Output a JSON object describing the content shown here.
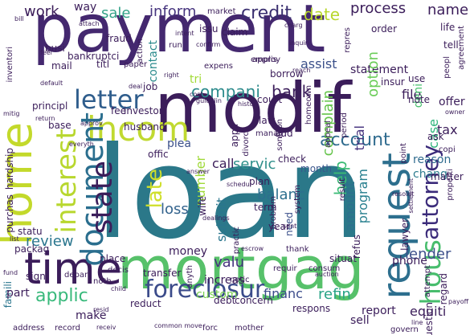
{
  "words": [
    {
      "text": "payment",
      "color": "#44286f"
    },
    {
      "text": "modif",
      "color": "#3b1d5a"
    },
    {
      "text": "loan",
      "color": "#2b7889"
    },
    {
      "text": "mortgag",
      "color": "#57c16a"
    },
    {
      "text": "home",
      "color": "#c3d92b"
    },
    {
      "text": "time",
      "color": "#3b1d5a"
    },
    {
      "text": "request",
      "color": "#2d6f8e"
    },
    {
      "text": "incom",
      "color": "#c0d930"
    },
    {
      "text": "document",
      "color": "#2a6e8e"
    },
    {
      "text": "letter",
      "color": "#2f5d8c"
    },
    {
      "text": "interest",
      "color": "#b8d72e"
    },
    {
      "text": "state",
      "color": "#3b1d5a"
    },
    {
      "text": "foreclosur",
      "color": "#3b4b8a"
    },
    {
      "text": "attorney",
      "color": "#3b2b7a"
    },
    {
      "text": "hous",
      "color": "#48bd6d"
    },
    {
      "text": "late",
      "color": "#cfdf2a"
    },
    {
      "text": "applic",
      "color": "#38b97b"
    },
    {
      "text": "credit",
      "color": "#3a2f70"
    },
    {
      "text": "compani",
      "color": "#2d8b8c"
    },
    {
      "text": "account",
      "color": "#2f6b8e"
    },
    {
      "text": "work",
      "color": "#3b1d5a"
    },
    {
      "text": "inform",
      "color": "#46347e"
    },
    {
      "text": "sale",
      "color": "#34a388"
    },
    {
      "text": "date",
      "color": "#b8d72e"
    },
    {
      "text": "process",
      "color": "#3b1d5a"
    },
    {
      "text": "name",
      "color": "#3b1d5a"
    },
    {
      "text": "bank",
      "color": "#3b1d5a"
    },
    {
      "text": "servic",
      "color": "#2f8f8b"
    },
    {
      "text": "review",
      "color": "#2a768e"
    },
    {
      "text": "valu",
      "color": "#46337e"
    },
    {
      "text": "financ",
      "color": "#3b4b8a"
    },
    {
      "text": "refin",
      "color": "#27a386"
    },
    {
      "text": "loss",
      "color": "#33638d"
    },
    {
      "text": "balanc",
      "color": "#2d6f8e"
    },
    {
      "text": "call",
      "color": "#3b1d5a"
    },
    {
      "text": "help",
      "color": "#3bbb75"
    },
    {
      "text": "amount",
      "color": "#2d6f8e"
    },
    {
      "text": "program",
      "color": "#277f8e"
    },
    {
      "text": "complain",
      "color": "#64c44a"
    },
    {
      "text": "trial",
      "color": "#46337e"
    },
    {
      "text": "statement",
      "color": "#3b1d5a"
    },
    {
      "text": "option",
      "color": "#6ccd5a"
    },
    {
      "text": "file",
      "color": "#3b1d5a"
    },
    {
      "text": "lender",
      "color": "#3c4f8a"
    },
    {
      "text": "tax",
      "color": "#3b1d5a"
    },
    {
      "text": "case",
      "color": "#2fb47c"
    },
    {
      "text": "deni",
      "color": "#48c16e"
    },
    {
      "text": "assist",
      "color": "#3b508a"
    },
    {
      "text": "contact",
      "color": "#2a8a8c"
    },
    {
      "text": "tri",
      "color": "#a2da37"
    },
    {
      "text": "submit",
      "color": "#2a768e"
    },
    {
      "text": "plea",
      "color": "#3b508a"
    },
    {
      "text": "number",
      "color": "#9fd938"
    },
    {
      "text": "phone",
      "color": "#3b1d5a"
    },
    {
      "text": "offer",
      "color": "#3b1d5a"
    },
    {
      "text": "reason",
      "color": "#2f6b8e"
    },
    {
      "text": "chang",
      "color": "#2c7b8e"
    },
    {
      "text": "check",
      "color": "#3b1d5a"
    },
    {
      "text": "month",
      "color": "#39568c"
    },
    {
      "text": "need",
      "color": "#3b508a"
    },
    {
      "text": "plan",
      "color": "#3b1d5a"
    },
    {
      "text": "increas",
      "color": "#3b1d5a"
    },
    {
      "text": "money",
      "color": "#3b1d5a"
    },
    {
      "text": "place",
      "color": "#3b1d5a"
    },
    {
      "text": "transfer",
      "color": "#3b1d5a"
    },
    {
      "text": "custom",
      "color": "#7ad151"
    },
    {
      "text": "reduct",
      "color": "#3b1d5a"
    },
    {
      "text": "debt",
      "color": "#3b1d5a"
    },
    {
      "text": "concern",
      "color": "#3b1d5a"
    },
    {
      "text": "report",
      "color": "#3b1d5a"
    },
    {
      "text": "respons",
      "color": "#3b1d5a"
    },
    {
      "text": "sell",
      "color": "#3b1d5a"
    },
    {
      "text": "equiti",
      "color": "#3b1d5a"
    },
    {
      "text": "question",
      "color": "#3b1d5a"
    },
    {
      "text": "regard",
      "color": "#3b1d5a"
    },
    {
      "text": "make",
      "color": "#3b1d5a"
    },
    {
      "text": "famili",
      "color": "#2a768e"
    },
    {
      "text": "part",
      "color": "#3b1d5a"
    },
    {
      "text": "sign",
      "color": "#3b1d5a"
    },
    {
      "text": "packag",
      "color": "#3b1d5a"
    },
    {
      "text": "statu",
      "color": "#3b1d5a"
    },
    {
      "text": "purchas",
      "color": "#3b1d5a"
    },
    {
      "text": "hardship",
      "color": "#3b1d5a"
    },
    {
      "text": "base",
      "color": "#3b1d5a"
    },
    {
      "text": "job",
      "color": "#3b1d5a"
    },
    {
      "text": "fee",
      "color": "#3b1d5a"
    },
    {
      "text": "investor",
      "color": "#3b1d5a"
    },
    {
      "text": "husband",
      "color": "#3b1d5a"
    },
    {
      "text": "offic",
      "color": "#3b1d5a"
    },
    {
      "text": "law",
      "color": "#3b1d5a"
    },
    {
      "text": "add",
      "color": "#3b1d5a"
    },
    {
      "text": "appli",
      "color": "#3b1d5a"
    },
    {
      "text": "claim",
      "color": "#3b1d5a"
    },
    {
      "text": "fraud",
      "color": "#3b1d5a"
    },
    {
      "text": "titl",
      "color": "#3b1d5a"
    },
    {
      "text": "bankruptci",
      "color": "#3b1d5a"
    },
    {
      "text": "busi",
      "color": "#3b1d5a"
    },
    {
      "text": "mail",
      "color": "#3b1d5a"
    },
    {
      "text": "issu",
      "color": "#3b1d5a"
    },
    {
      "text": "principl",
      "color": "#3b1d5a"
    },
    {
      "text": "way",
      "color": "#3b1d5a"
    },
    {
      "text": "notic",
      "color": "#3b1d5a"
    },
    {
      "text": "lawyer",
      "color": "#3b1d5a"
    },
    {
      "text": "refus",
      "color": "#3b1d5a"
    },
    {
      "text": "year",
      "color": "#3b1d5a"
    },
    {
      "text": "thank",
      "color": "#3b1d5a"
    },
    {
      "text": "situat",
      "color": "#3b1d5a"
    },
    {
      "text": "consum",
      "color": "#3b1d5a"
    },
    {
      "text": "requir",
      "color": "#3b1d5a"
    },
    {
      "text": "wife",
      "color": "#3b1d5a"
    },
    {
      "text": "term",
      "color": "#3b1d5a"
    },
    {
      "text": "anyth",
      "color": "#3b1d5a"
    },
    {
      "text": "depart",
      "color": "#3b1d5a"
    },
    {
      "text": "decis",
      "color": "#3b1d5a"
    },
    {
      "text": "court",
      "color": "#3b1d5a"
    },
    {
      "text": "borrow",
      "color": "#3b1d5a"
    },
    {
      "text": "appris",
      "color": "#3b1d5a"
    },
    {
      "text": "insur",
      "color": "#3b1d5a"
    },
    {
      "text": "note",
      "color": "#3b1d5a"
    },
    {
      "text": "use",
      "color": "#3b1d5a"
    },
    {
      "text": "life",
      "color": "#3b1d5a"
    },
    {
      "text": "tell",
      "color": "#3b1d5a"
    },
    {
      "text": "order",
      "color": "#3b1d5a"
    },
    {
      "text": "point",
      "color": "#3b1d5a"
    },
    {
      "text": "matter",
      "color": "#3b1d5a"
    },
    {
      "text": "copi",
      "color": "#3b1d5a"
    },
    {
      "text": "ask",
      "color": "#3b1d5a"
    },
    {
      "text": "system",
      "color": "#3b1d5a"
    },
    {
      "text": "problem",
      "color": "#3b1d5a"
    },
    {
      "text": "period",
      "color": "#3b1d5a"
    },
    {
      "text": "someon",
      "color": "#3b1d5a"
    },
    {
      "text": "appeal",
      "color": "#3b1d5a"
    },
    {
      "text": "homeown",
      "color": "#3b1d5a"
    },
    {
      "text": "result",
      "color": "#3b1d5a"
    },
    {
      "text": "practic",
      "color": "#3b1d5a"
    },
    {
      "text": "divorc",
      "color": "#3b1d5a"
    },
    {
      "text": "manag",
      "color": "#3b1d5a"
    },
    {
      "text": "market",
      "color": "#3b1d5a"
    },
    {
      "text": "inventori",
      "color": "#3b1d5a"
    },
    {
      "text": "agreement",
      "color": "#3b1d5a"
    },
    {
      "text": "peopl",
      "color": "#3b1d5a"
    },
    {
      "text": "attempt",
      "color": "#3b1d5a"
    },
    {
      "text": "child",
      "color": "#3b1d5a"
    },
    {
      "text": "noth",
      "color": "#3b1d5a"
    },
    {
      "text": "address",
      "color": "#3b1d5a"
    },
    {
      "text": "record",
      "color": "#3b1d5a"
    },
    {
      "text": "forc",
      "color": "#3b1d5a"
    },
    {
      "text": "mother",
      "color": "#3b1d5a"
    },
    {
      "text": "govern",
      "color": "#3b1d5a"
    },
    {
      "text": "line",
      "color": "#3b1d5a"
    },
    {
      "text": "payoff",
      "color": "#3b1d5a"
    },
    {
      "text": "auction",
      "color": "#3b1d5a"
    },
    {
      "text": "schedul",
      "color": "#3b1d5a"
    },
    {
      "text": "escrow",
      "color": "#3b1d5a"
    },
    {
      "text": "expens",
      "color": "#3b1d5a"
    },
    {
      "text": "employ",
      "color": "#3b1d5a"
    },
    {
      "text": "paper",
      "color": "#3b1d5a"
    },
    {
      "text": "action",
      "color": "#3b1d5a"
    },
    {
      "text": "deal",
      "color": "#3b1d5a"
    },
    {
      "text": "guidelin",
      "color": "#3b1d5a"
    },
    {
      "text": "histori",
      "color": "#3b1d5a"
    },
    {
      "text": "cost",
      "color": "#3b1d5a"
    },
    {
      "text": "approv",
      "color": "#3b1d5a"
    },
    {
      "text": "return",
      "color": "#3b1d5a"
    },
    {
      "text": "mitig",
      "color": "#3b1d5a"
    },
    {
      "text": "fund",
      "color": "#3b1d5a"
    },
    {
      "text": "default",
      "color": "#3b1d5a"
    },
    {
      "text": "feel",
      "color": "#3b1d5a"
    },
    {
      "text": "bill",
      "color": "#3b1d5a"
    },
    {
      "text": "attach",
      "color": "#3b1d5a"
    },
    {
      "text": "take",
      "color": "#3b1d5a"
    },
    {
      "text": "repres",
      "color": "#3b1d5a"
    },
    {
      "text": "inquiri",
      "color": "#3b1d5a"
    },
    {
      "text": "confirm",
      "color": "#3b1d5a"
    },
    {
      "text": "intent",
      "color": "#3b1d5a"
    },
    {
      "text": "run",
      "color": "#3b1d5a"
    },
    {
      "text": "right",
      "color": "#3b1d5a"
    },
    {
      "text": "charg",
      "color": "#3b1d5a"
    },
    {
      "text": "reach",
      "color": "#3b1d5a"
    },
    {
      "text": "advis",
      "color": "#3b1d5a"
    },
    {
      "text": "owner",
      "color": "#3b1d5a"
    },
    {
      "text": "settlement",
      "color": "#3b1d5a"
    },
    {
      "text": "answer",
      "color": "#3b1d5a"
    },
    {
      "text": "properti",
      "color": "#3b1d5a"
    },
    {
      "text": "resolut",
      "color": "#3b1d5a"
    },
    {
      "text": "list",
      "color": "#3b1d5a"
    },
    {
      "text": "receiv",
      "color": "#3b1d5a"
    },
    {
      "text": "common move",
      "color": "#3b1d5a"
    },
    {
      "text": "resid",
      "color": "#3b1d5a"
    },
    {
      "text": "everyth",
      "color": "#3b1d5a"
    },
    {
      "text": "dealings",
      "color": "#3b1d5a"
    },
    {
      "text": "sent",
      "color": "#3b1d5a"
    }
  ]
}
